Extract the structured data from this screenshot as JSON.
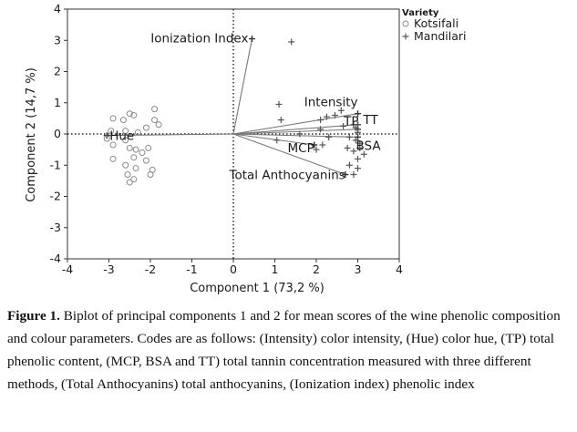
{
  "chart_data": {
    "type": "scatter",
    "subtype": "biplot",
    "xlabel": "Component 1  (73,2 %)",
    "ylabel": "Component 2  (14,7 %)",
    "xlim": [
      -4,
      4
    ],
    "ylim": [
      -4,
      4
    ],
    "xticks": [
      -4,
      -3,
      -2,
      -1,
      0,
      1,
      2,
      3,
      4
    ],
    "yticks": [
      -4,
      -3,
      -2,
      -1,
      0,
      1,
      2,
      3,
      4
    ],
    "legend": {
      "title": "Variety",
      "position": "top-right",
      "entries": [
        {
          "name": "Kotsifali",
          "marker": "circle"
        },
        {
          "name": "Mandilari",
          "marker": "plus"
        }
      ]
    },
    "series": [
      {
        "name": "Kotsifali",
        "marker": "circle",
        "points": [
          [
            -2.5,
            0.65
          ],
          [
            -2.4,
            0.6
          ],
          [
            -2.9,
            0.5
          ],
          [
            -2.65,
            0.45
          ],
          [
            -1.9,
            0.8
          ],
          [
            -1.9,
            0.45
          ],
          [
            -1.8,
            0.3
          ],
          [
            -2.1,
            0.2
          ],
          [
            -2.95,
            0.1
          ],
          [
            -2.6,
            0.1
          ],
          [
            -2.3,
            0.05
          ],
          [
            -3.05,
            -0.15
          ],
          [
            -2.9,
            -0.35
          ],
          [
            -2.6,
            -0.2
          ],
          [
            -2.5,
            -0.45
          ],
          [
            -2.35,
            -0.5
          ],
          [
            -2.05,
            -0.45
          ],
          [
            -2.2,
            -0.6
          ],
          [
            -2.9,
            -0.8
          ],
          [
            -2.4,
            -0.75
          ],
          [
            -2.1,
            -0.85
          ],
          [
            -2.6,
            -1.0
          ],
          [
            -1.95,
            -1.15
          ],
          [
            -2.35,
            -1.1
          ],
          [
            -2.55,
            -1.3
          ],
          [
            -2.4,
            -1.45
          ],
          [
            -2.5,
            -1.55
          ],
          [
            -2.0,
            -1.3
          ]
        ]
      },
      {
        "name": "Mandilari",
        "marker": "plus",
        "points": [
          [
            1.4,
            2.95
          ],
          [
            1.1,
            0.95
          ],
          [
            1.15,
            0.45
          ],
          [
            1.6,
            0.0
          ],
          [
            1.05,
            -0.2
          ],
          [
            2.1,
            0.45
          ],
          [
            2.25,
            0.55
          ],
          [
            2.6,
            0.75
          ],
          [
            2.45,
            0.6
          ],
          [
            2.1,
            0.15
          ],
          [
            2.3,
            -0.1
          ],
          [
            2.65,
            0.25
          ],
          [
            2.9,
            0.3
          ],
          [
            3.0,
            0.3
          ],
          [
            2.95,
            0.2
          ],
          [
            3.0,
            0.05
          ],
          [
            2.8,
            -0.1
          ],
          [
            2.95,
            -0.2
          ],
          [
            3.05,
            -0.3
          ],
          [
            2.75,
            -0.45
          ],
          [
            3.05,
            -0.45
          ],
          [
            2.9,
            -0.55
          ],
          [
            3.15,
            -0.65
          ],
          [
            3.0,
            -0.8
          ],
          [
            2.8,
            -1.0
          ],
          [
            3.0,
            -1.1
          ],
          [
            2.9,
            -1.3
          ],
          [
            2.0,
            -0.5
          ],
          [
            2.15,
            -0.35
          ]
        ]
      }
    ],
    "loadings": [
      {
        "name": "Ionization Index",
        "x": 0.45,
        "y": 3.05
      },
      {
        "name": "Intensity",
        "x": 3.0,
        "y": 0.65
      },
      {
        "name": "TP",
        "x": 3.0,
        "y": 0.3
      },
      {
        "name": "TT",
        "x": 3.0,
        "y": 0.15
      },
      {
        "name": "BSA",
        "x": 3.0,
        "y": -0.1
      },
      {
        "name": "MCP",
        "x": 1.95,
        "y": -0.35
      },
      {
        "name": "Total Anthocyanins",
        "x": 2.7,
        "y": -1.3
      },
      {
        "name": "Hue",
        "x": -3.05,
        "y": -0.05
      }
    ],
    "reference_lines": {
      "x": 0,
      "y": 0,
      "style": "dotted"
    },
    "grid": false
  },
  "caption": {
    "label": "Figure 1.",
    "text": " Biplot of principal components 1 and 2 for mean scores of the wine phenolic composition and colour parameters. Codes are as follows: (Intensity) color intensity, (Hue) color hue, (TP) total phenolic content, (MCP, BSA and TT) total tannin concentration measured with three different methods, (Total Anthocyanins) total anthocyanins, (Ionization index) phenolic index"
  }
}
